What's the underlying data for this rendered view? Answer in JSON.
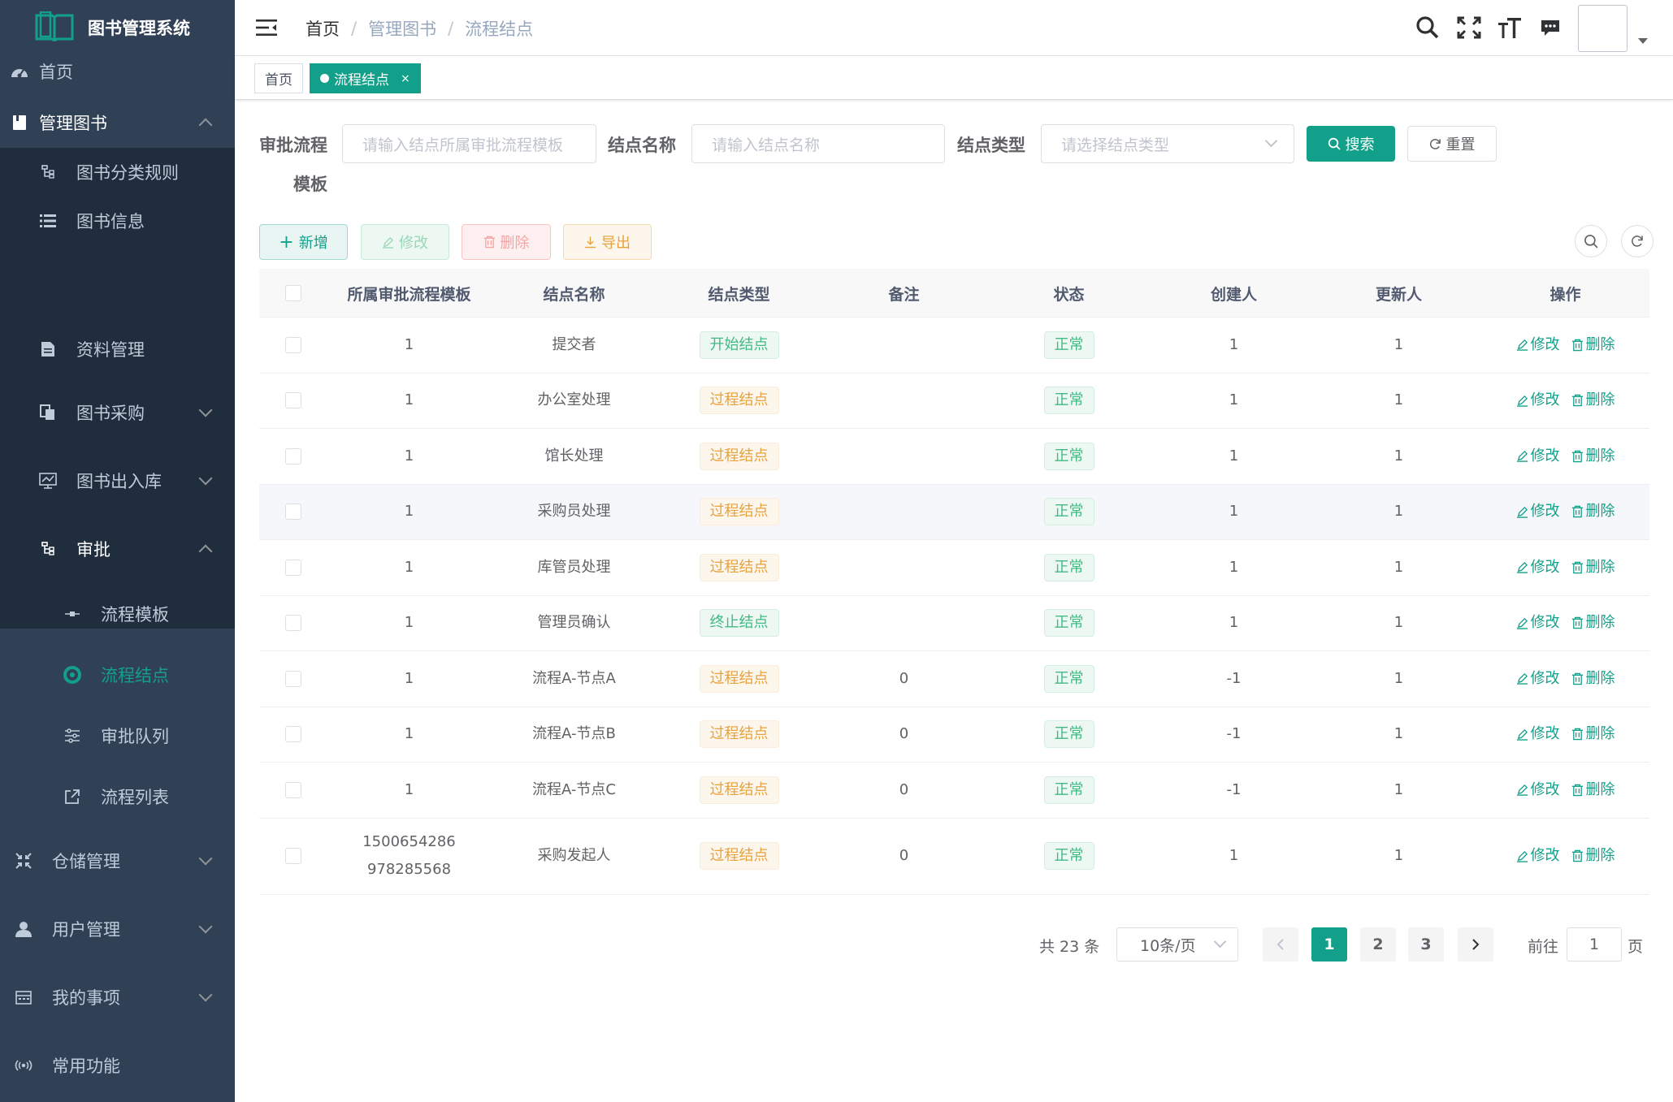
{
  "app": {
    "title": "图书管理系统"
  },
  "sidebar": {
    "items": [
      {
        "label": "首页",
        "icon": "dashboard-icon"
      },
      {
        "label": "管理图书",
        "icon": "book-icon"
      },
      {
        "label": "图书分类规则",
        "icon": "tree-icon"
      },
      {
        "label": "图书信息",
        "icon": "list-icon"
      },
      {
        "label": "资料管理",
        "icon": "document-icon"
      },
      {
        "label": "图书采购",
        "icon": "copy-icon"
      },
      {
        "label": "图书出入库",
        "icon": "chart-icon"
      },
      {
        "label": "审批",
        "icon": "tree-icon"
      },
      {
        "label": "流程模板",
        "icon": "node-icon"
      },
      {
        "label": "流程结点",
        "icon": "circle-icon"
      },
      {
        "label": "审批队列",
        "icon": "sliders-icon"
      },
      {
        "label": "流程列表",
        "icon": "external-link-icon"
      },
      {
        "label": "仓储管理",
        "icon": "shrink-icon"
      },
      {
        "label": "用户管理",
        "icon": "user-icon"
      },
      {
        "label": "我的事项",
        "icon": "calendar-icon"
      },
      {
        "label": "常用功能",
        "icon": "broadcast-icon"
      }
    ]
  },
  "breadcrumb": {
    "home": "首页",
    "level1": "管理图书",
    "level2": "流程结点"
  },
  "tags": {
    "home": "首页",
    "current": "流程结点",
    "close": "×"
  },
  "search": {
    "label_template_1": "审批流程",
    "label_template_2": "模板",
    "template_placeholder": "请输入结点所属审批流程模板",
    "label_name": "结点名称",
    "name_placeholder": "请输入结点名称",
    "label_type": "结点类型",
    "type_placeholder": "请选择结点类型",
    "search_btn": "搜索",
    "reset_btn": "重置"
  },
  "toolbar": {
    "add": "新增",
    "edit": "修改",
    "delete": "删除",
    "export": "导出"
  },
  "table": {
    "headers": [
      "所属审批流程模板",
      "结点名称",
      "结点类型",
      "备注",
      "状态",
      "创建人",
      "更新人",
      "操作"
    ],
    "edit_label": "修改",
    "delete_label": "删除",
    "rows": [
      {
        "template": "1",
        "name": "提交者",
        "type": "开始结点",
        "type_style": "green",
        "remark": "",
        "status": "正常",
        "creator": "1",
        "updater": "1"
      },
      {
        "template": "1",
        "name": "办公室处理",
        "type": "过程结点",
        "type_style": "orange",
        "remark": "",
        "status": "正常",
        "creator": "1",
        "updater": "1"
      },
      {
        "template": "1",
        "name": "馆长处理",
        "type": "过程结点",
        "type_style": "orange",
        "remark": "",
        "status": "正常",
        "creator": "1",
        "updater": "1"
      },
      {
        "template": "1",
        "name": "采购员处理",
        "type": "过程结点",
        "type_style": "orange",
        "remark": "",
        "status": "正常",
        "creator": "1",
        "updater": "1"
      },
      {
        "template": "1",
        "name": "库管员处理",
        "type": "过程结点",
        "type_style": "orange",
        "remark": "",
        "status": "正常",
        "creator": "1",
        "updater": "1"
      },
      {
        "template": "1",
        "name": "管理员确认",
        "type": "终止结点",
        "type_style": "green",
        "remark": "",
        "status": "正常",
        "creator": "1",
        "updater": "1"
      },
      {
        "template": "1",
        "name": "流程A-节点A",
        "type": "过程结点",
        "type_style": "orange",
        "remark": "0",
        "status": "正常",
        "creator": "-1",
        "updater": "1"
      },
      {
        "template": "1",
        "name": "流程A-节点B",
        "type": "过程结点",
        "type_style": "orange",
        "remark": "0",
        "status": "正常",
        "creator": "-1",
        "updater": "1"
      },
      {
        "template": "1",
        "name": "流程A-节点C",
        "type": "过程结点",
        "type_style": "orange",
        "remark": "0",
        "status": "正常",
        "creator": "-1",
        "updater": "1"
      },
      {
        "template": "1500654286978285568",
        "name": "采购发起人",
        "type": "过程结点",
        "type_style": "orange",
        "remark": "0",
        "status": "正常",
        "creator": "1",
        "updater": "1"
      }
    ]
  },
  "pagination": {
    "total": "共 23 条",
    "page_size": "10条/页",
    "pages": [
      "1",
      "2",
      "3"
    ],
    "current_page": "1",
    "goto_label": "前往",
    "goto_value": "1",
    "page_suffix": "页"
  },
  "colors": {
    "primary": "#13a08a",
    "sidebar": "#304156",
    "submenu": "#1f2d3d"
  }
}
